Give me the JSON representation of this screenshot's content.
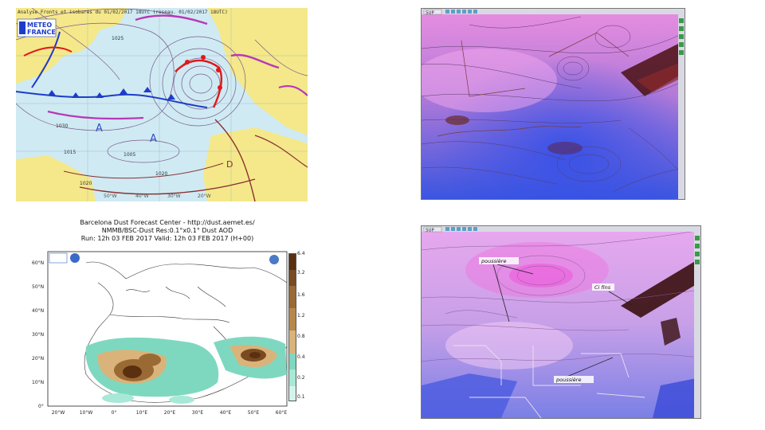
{
  "synoptic": {
    "header": "Analyse Fronts et isobares du 01/02/2017 18UTC (reseau. 01/02/2017 18UTC)",
    "logo_top": "METEO",
    "logo_bottom": "FRANCE",
    "isobar_labels": [
      "1005",
      "1020",
      "1030",
      "1015",
      "1025",
      "1020"
    ],
    "pressure_centres": [
      "A",
      "A",
      "D"
    ],
    "longitude_labels": [
      "50°W",
      "40°W",
      "30°W",
      "20°W"
    ]
  },
  "satellite_top": {
    "toolbar_label": "SUP",
    "colors": {
      "pink": "#e070d8",
      "blue": "#4060e0"
    }
  },
  "dust_forecast": {
    "title": "Barcelona Dust Forecast Center - http://dust.aemet.es/",
    "model_line": "NMMB/BSC-Dust   Res:0.1°x0.1°   Dust AOD",
    "run_line": "Run: 12h 03 FEB 2017   Valid: 12h 03 FEB 2017 (H+00)",
    "lat_labels": [
      "60°N",
      "50°N",
      "40°N",
      "30°N",
      "20°N",
      "10°N",
      "0°"
    ],
    "lon_labels": [
      "20°W",
      "10°W",
      "0°",
      "10°E",
      "20°E",
      "30°E",
      "40°E",
      "50°E",
      "60°E"
    ],
    "colorbar_labels": [
      "6.4",
      "3.2",
      "1.6",
      "1.2",
      "0.8",
      "0.4",
      "0.2",
      "0.1"
    ],
    "colorbar_colors": [
      "#5a3010",
      "#7a4a20",
      "#9a6a35",
      "#b8874a",
      "#d9b37a",
      "#7ed8c0",
      "#a7e8d6",
      "#d3f4ec"
    ]
  },
  "satellite_bottom": {
    "toolbar_label": "SUP",
    "annotations": [
      "poussière",
      "Ci fins",
      "poussière"
    ]
  }
}
